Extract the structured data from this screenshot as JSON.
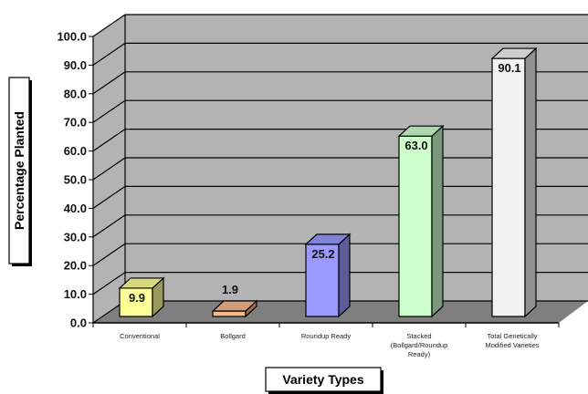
{
  "chart_data": {
    "type": "bar",
    "title": "",
    "xlabel": "Variety Types",
    "ylabel": "Percentage Planted",
    "ylim": [
      0,
      100
    ],
    "yticks": [
      "0.0",
      "10.0",
      "20.0",
      "30.0",
      "40.0",
      "50.0",
      "60.0",
      "70.0",
      "80.0",
      "90.0",
      "100.0"
    ],
    "grid": true,
    "style": "3d",
    "categories": [
      [
        "Conventional"
      ],
      [
        "Bollgard"
      ],
      [
        "Roundup Ready"
      ],
      [
        "Stacked",
        "(Bollgard/Roundup",
        "Ready)"
      ],
      [
        "Total Genetically",
        "Modified Varieties"
      ]
    ],
    "values": [
      9.9,
      1.9,
      25.2,
      63.0,
      90.1
    ],
    "value_labels": [
      "9.9",
      "1.9",
      "25.2",
      "63.0",
      "90.1"
    ],
    "colors": [
      "#ffff99",
      "#f6b98e",
      "#9999ff",
      "#ccffcc",
      "#f2f2f2"
    ],
    "wall_color": "#b3b3b3",
    "floor_color": "#7f7f7f"
  }
}
